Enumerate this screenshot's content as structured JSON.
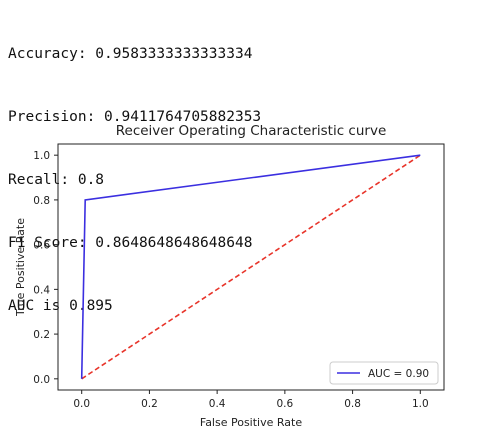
{
  "output_lines": [
    "Accuracy: 0.9583333333333334",
    "Precision: 0.9411764705882353",
    "Recall: 0.8",
    "F1 Score: 0.8648648648648648",
    "AUC is 0.895"
  ],
  "chart_data": {
    "type": "line",
    "title": "Receiver Operating Characteristic curve",
    "xlabel": "False Positive Rate",
    "ylabel": "True Positive Rate",
    "xlim": [
      -0.07,
      1.07
    ],
    "ylim": [
      -0.05,
      1.05
    ],
    "xticks": [
      "0.0",
      "0.2",
      "0.4",
      "0.6",
      "0.8",
      "1.0"
    ],
    "yticks": [
      "0.0",
      "0.2",
      "0.4",
      "0.6",
      "0.8",
      "1.0"
    ],
    "grid": false,
    "legend_position": "lower right",
    "series": [
      {
        "name": "AUC = 0.90",
        "color": "#3b2fe0",
        "style": "solid",
        "x": [
          0.0,
          0.0104,
          1.0
        ],
        "y": [
          0.0,
          0.8,
          1.0
        ]
      },
      {
        "name": "",
        "color": "#e8342a",
        "style": "dashed",
        "x": [
          0.0,
          1.0
        ],
        "y": [
          0.0,
          1.0
        ]
      }
    ]
  }
}
